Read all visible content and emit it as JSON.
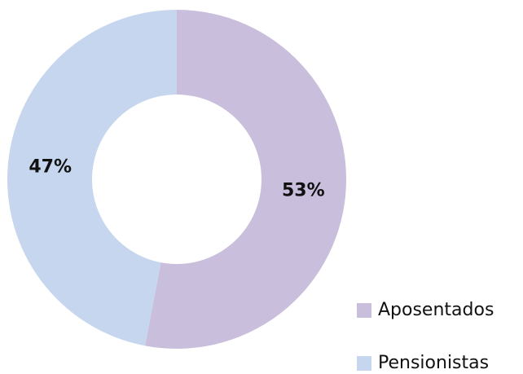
{
  "chart_data": {
    "type": "donut",
    "categories": [
      "Aposentados",
      "Pensionistas"
    ],
    "values": [
      53,
      47
    ],
    "value_labels": [
      "53%",
      "47%"
    ],
    "colors": [
      "#c9bedc",
      "#c6d6ef"
    ],
    "legend": "bottom-right"
  }
}
